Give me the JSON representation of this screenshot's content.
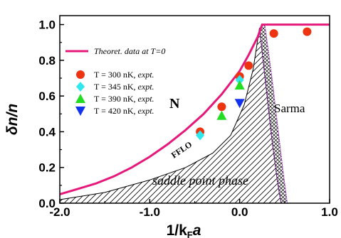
{
  "chart_data": {
    "type": "scatter",
    "xlabel_main": "1/k",
    "xlabel_sub": "F",
    "xlabel_tail": "a",
    "ylabel": "δn/n",
    "xlim": [
      -2.0,
      1.0
    ],
    "ylim": [
      0.0,
      1.05
    ],
    "x_ticks": [
      "-2.0",
      "-1.0",
      "0.0",
      "1.0"
    ],
    "x_tick_values": [
      -2.0,
      -1.0,
      0.0,
      1.0
    ],
    "y_ticks": [
      "0.0",
      "0.2",
      "0.4",
      "0.6",
      "0.8",
      "1.0"
    ],
    "y_tick_values": [
      0.0,
      0.2,
      0.4,
      0.6,
      0.8,
      1.0
    ],
    "theory": {
      "name": "Theoret. data at T=0",
      "color": "#e6197a",
      "x": [
        -2.0,
        -1.8,
        -1.6,
        -1.4,
        -1.2,
        -1.0,
        -0.8,
        -0.6,
        -0.4,
        -0.2,
        0.0,
        0.1,
        0.2,
        0.25,
        0.3,
        1.0
      ],
      "y": [
        0.05,
        0.08,
        0.11,
        0.15,
        0.2,
        0.26,
        0.33,
        0.41,
        0.5,
        0.61,
        0.74,
        0.83,
        0.93,
        1.0,
        1.0,
        1.0
      ]
    },
    "series": [
      {
        "name": "T = 300 nK,",
        "note": "expt.",
        "marker": "circle",
        "color": "#ee3311",
        "x": [
          -0.44,
          -0.2,
          0.0,
          0.1,
          0.38,
          0.75
        ],
        "y": [
          0.4,
          0.54,
          0.71,
          0.77,
          0.95,
          0.96
        ]
      },
      {
        "name": "T = 345 nK,",
        "note": "expt.",
        "marker": "diamond",
        "color": "#2ee8ee",
        "x": [
          -0.44,
          0.0
        ],
        "y": [
          0.38,
          0.69
        ]
      },
      {
        "name": "T = 390 nK,",
        "note": "expt.",
        "marker": "triangle-up",
        "color": "#22dd22",
        "x": [
          -0.2,
          0.0
        ],
        "y": [
          0.49,
          0.66
        ]
      },
      {
        "name": "T = 420 nK,",
        "note": "expt.",
        "marker": "triangle-down",
        "color": "#1133ee",
        "x": [
          0.0
        ],
        "y": [
          0.56
        ]
      }
    ],
    "regions": {
      "saddle_upper": {
        "x": [
          -2.0,
          -1.5,
          -1.0,
          -0.6,
          -0.3,
          -0.1,
          0.05,
          0.15,
          0.22
        ],
        "y": [
          0.02,
          0.06,
          0.13,
          0.2,
          0.28,
          0.38,
          0.55,
          0.75,
          0.98
        ]
      },
      "saddle_right": {
        "x": [
          0.22,
          0.3,
          0.36,
          0.42,
          0.46
        ],
        "y": [
          0.98,
          0.62,
          0.35,
          0.12,
          0.0
        ]
      },
      "sarma_right": {
        "x": [
          0.28,
          0.36,
          0.43,
          0.49,
          0.53
        ],
        "y": [
          1.0,
          0.7,
          0.4,
          0.15,
          0.0
        ]
      }
    },
    "annotations": {
      "N": "N",
      "sarma": "Sarma",
      "fflo": "FFLO",
      "saddle": "saddle point phase"
    },
    "legend_position": "upper-left",
    "grid": false
  }
}
